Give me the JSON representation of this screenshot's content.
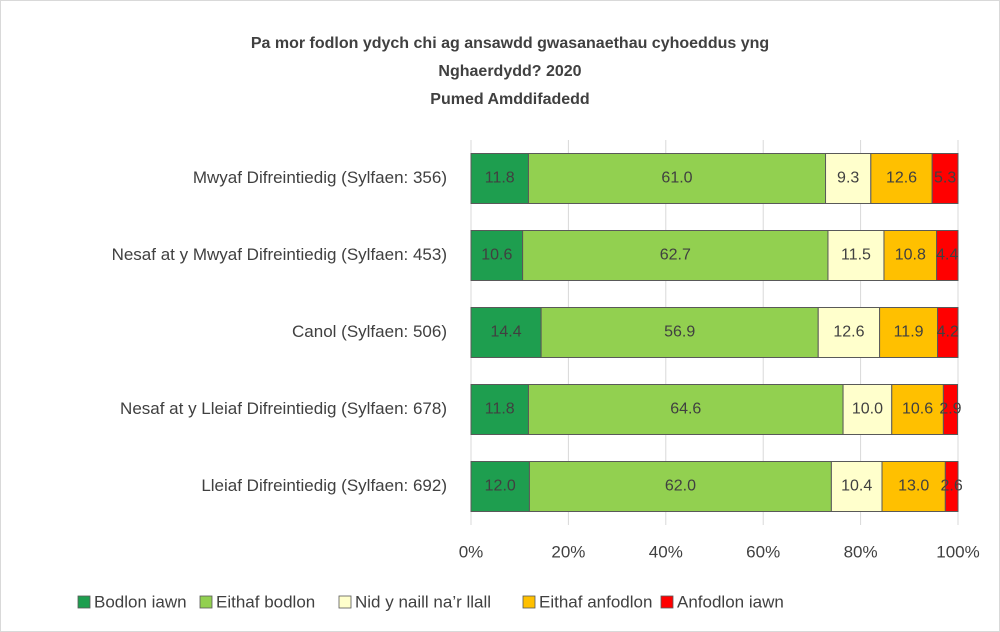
{
  "chart_data": {
    "type": "stacked_barh",
    "title": [
      "Pa mor fodlon ydych chi ag ansawdd gwasanaethau cyhoeddus yng",
      "Nghaerdydd? 2020"
    ],
    "subtitle": "Pumed Amddifadedd",
    "categories": [
      "Mwyaf Difreintiedig (Sylfaen: 356)",
      "Nesaf at y Mwyaf Difreintiedig (Sylfaen: 453)",
      "Canol (Sylfaen: 506)",
      "Nesaf at y Lleiaf Difreintiedig (Sylfaen: 678)",
      "Lleiaf Difreintiedig (Sylfaen: 692)"
    ],
    "series": [
      {
        "name": "Bodlon iawn",
        "color": "#1e9e4f",
        "values": [
          11.8,
          10.6,
          14.4,
          11.8,
          12.0
        ],
        "value_labels": [
          "11.8",
          "10.6",
          "14.4",
          "11.8",
          "12.0"
        ]
      },
      {
        "name": "Eithaf bodlon",
        "color": "#92d050",
        "values": [
          61.0,
          62.7,
          56.9,
          64.6,
          62.0
        ],
        "value_labels": [
          "61.0",
          "62.7",
          "56.9",
          "64.6",
          "62.0"
        ]
      },
      {
        "name": "Nid y naill na’r llall",
        "color": "#ffffcc",
        "values": [
          9.3,
          11.5,
          12.6,
          10.0,
          10.4
        ],
        "value_labels": [
          "9.3",
          "11.5",
          "12.6",
          "10.0",
          "10.4"
        ]
      },
      {
        "name": "Eithaf anfodlon",
        "color": "#ffc000",
        "values": [
          12.6,
          10.8,
          11.9,
          10.6,
          13.0
        ],
        "value_labels": [
          "12.6",
          "10.8",
          "11.9",
          "10.6",
          "13.0"
        ]
      },
      {
        "name": "Anfodlon iawn",
        "color": "#ff0000",
        "values": [
          5.3,
          4.4,
          4.2,
          2.9,
          2.6
        ],
        "value_labels": [
          "5.3",
          "4.4",
          "4.2",
          "2.9",
          "2.6"
        ]
      }
    ],
    "xlim": [
      0,
      100
    ],
    "xticks": [
      {
        "value": 0,
        "label": "0%"
      },
      {
        "value": 20,
        "label": "20%"
      },
      {
        "value": 40,
        "label": "40%"
      },
      {
        "value": 60,
        "label": "60%"
      },
      {
        "value": 80,
        "label": "80%"
      },
      {
        "value": 100,
        "label": "100%"
      }
    ],
    "grid": true,
    "legend": "bottom"
  }
}
